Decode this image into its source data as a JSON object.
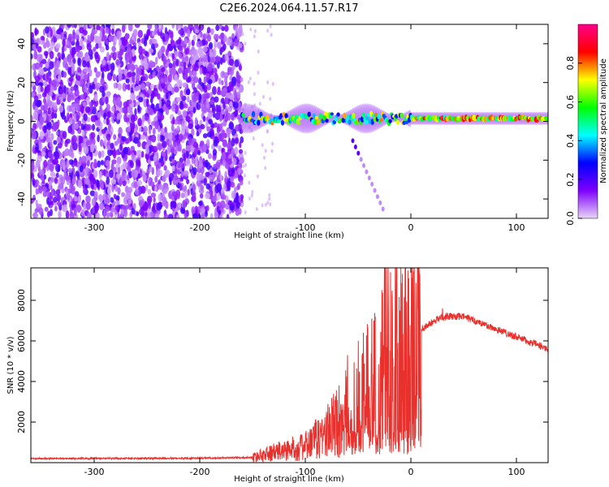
{
  "figure": {
    "title": "C2E6.2024.064.11.57.R17"
  },
  "chart_data": [
    {
      "type": "heatmap",
      "xlabel": "Height of straight line (km)",
      "ylabel": "Frequency (Hz)",
      "xlim": [
        -360,
        130
      ],
      "ylim": [
        -50,
        50
      ],
      "x_ticks": [
        -300,
        -200,
        -100,
        0,
        100
      ],
      "y_ticks": [
        -40,
        -20,
        0,
        20,
        40
      ],
      "colorbar": {
        "label": "Normalized spectral amplitude",
        "range": [
          0,
          1
        ],
        "ticks": [
          "0.0",
          "0.2",
          "0.4",
          "0.6",
          "0.8"
        ],
        "colors": [
          "#e8d6f6",
          "#7f00ff",
          "#0000ff",
          "#00ffff",
          "#00ff00",
          "#ffff00",
          "#ff0000",
          "#ff0088"
        ]
      },
      "regions": [
        {
          "x": [
            -360,
            -160
          ],
          "y": [
            -50,
            50
          ],
          "amplitude": 0.1,
          "description": "broadband noise"
        },
        {
          "x": [
            -160,
            130
          ],
          "y": [
            -3,
            6
          ],
          "amplitude": 0.75,
          "description": "carrier line"
        }
      ]
    },
    {
      "type": "line",
      "xlabel": "Height of straight line (km)",
      "ylabel": "SNR (10 * v/v)",
      "xlim": [
        -360,
        130
      ],
      "ylim": [
        0,
        9600
      ],
      "x_ticks": [
        -300,
        -200,
        -100,
        0,
        100
      ],
      "y_ticks": [
        2000,
        4000,
        6000,
        8000
      ],
      "color": "#e8302c",
      "envelope": [
        {
          "x": -360,
          "y": 200
        },
        {
          "x": -200,
          "y": 220
        },
        {
          "x": -150,
          "y": 250
        },
        {
          "x": -130,
          "y": 500
        },
        {
          "x": -100,
          "y": 800
        },
        {
          "x": -80,
          "y": 1500
        },
        {
          "x": -60,
          "y": 2500
        },
        {
          "x": -40,
          "y": 4000
        },
        {
          "x": -30,
          "y": 5200
        },
        {
          "x": -20,
          "y": 5800
        },
        {
          "x": -10,
          "y": 6000
        },
        {
          "x": 10,
          "y": 6600
        },
        {
          "x": 30,
          "y": 7200
        },
        {
          "x": 50,
          "y": 7200
        },
        {
          "x": 70,
          "y": 6800
        },
        {
          "x": 100,
          "y": 6200
        },
        {
          "x": 130,
          "y": 5600
        }
      ],
      "peaks": [
        {
          "x": -25,
          "y": 9600
        },
        {
          "x": -8,
          "y": 9300
        },
        {
          "x": -60,
          "y": 5300
        },
        {
          "x": -45,
          "y": 6400
        },
        {
          "x": -35,
          "y": 7000
        },
        {
          "x": -18,
          "y": 8200
        },
        {
          "x": 30,
          "y": 7600
        }
      ]
    }
  ]
}
